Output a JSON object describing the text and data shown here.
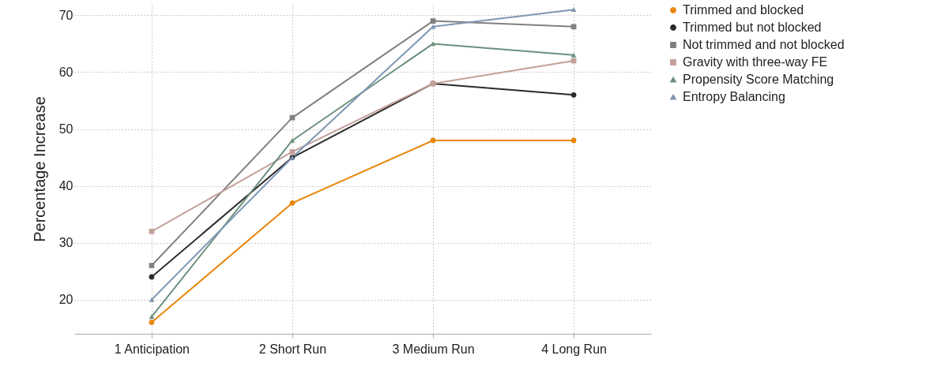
{
  "chart_data": {
    "type": "line",
    "ylabel": "Percentage Increase",
    "categories": [
      "1 Anticipation",
      "2 Short Run",
      "3 Medium Run",
      "4 Long Run"
    ],
    "ylim": [
      14,
      72
    ],
    "yticks": [
      20,
      30,
      40,
      50,
      60,
      70
    ],
    "grid": true,
    "legend": "right",
    "line_style": "solid",
    "series": [
      {
        "name": "Trimmed and blocked",
        "color": "#e8870e",
        "marker": "circle",
        "values": [
          16,
          37,
          48,
          48
        ]
      },
      {
        "name": "Trimmed but not blocked",
        "color": "#2b2b2b",
        "marker": "circle",
        "values": [
          24,
          45,
          58,
          56
        ]
      },
      {
        "name": "Not trimmed and not blocked",
        "color": "#808080",
        "marker": "square",
        "values": [
          26,
          52,
          69,
          68
        ]
      },
      {
        "name": "Gravity with three-way FE",
        "color": "#c4a09a",
        "marker": "square",
        "values": [
          32,
          46,
          58,
          62
        ]
      },
      {
        "name": "Propensity Score Matching",
        "color": "#6b8f7b",
        "marker": "triangle",
        "values": [
          17,
          48,
          65,
          63
        ]
      },
      {
        "name": "Entropy Balancing",
        "color": "#7f97b2",
        "marker": "triangle",
        "values": [
          20,
          45,
          68,
          71
        ]
      }
    ]
  }
}
